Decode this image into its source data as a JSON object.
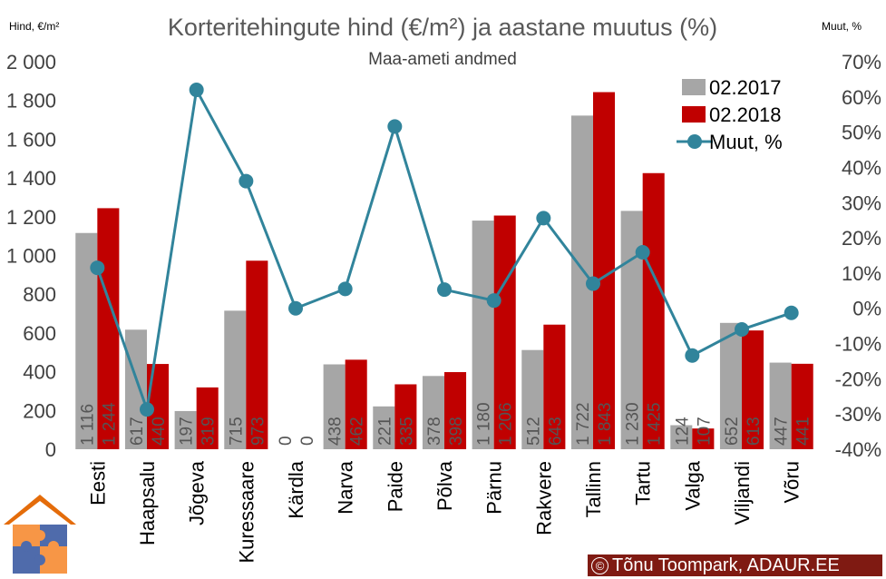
{
  "chart_data": {
    "type": "bar",
    "title": "Korteritehingute hind (€/m²) ja aastane muutus (%)",
    "subtitle": "Maa-ameti andmed",
    "ylabel": "Hind, €/m²",
    "y2label": "Muut, %",
    "ylim": [
      0,
      2000
    ],
    "y2lim": [
      -40,
      70
    ],
    "yticks": [
      "0",
      "200",
      "400",
      "600",
      "800",
      "1 000",
      "1 200",
      "1 400",
      "1 600",
      "1 800",
      "2 000"
    ],
    "y2ticks": [
      "-40%",
      "-30%",
      "-20%",
      "-10%",
      "0%",
      "10%",
      "20%",
      "30%",
      "40%",
      "50%",
      "60%",
      "70%"
    ],
    "categories": [
      "Eesti",
      "Haapsalu",
      "Jõgeva",
      "Kuressaare",
      "Kärdla",
      "Narva",
      "Paide",
      "Põlva",
      "Pärnu",
      "Rakvere",
      "Tallinn",
      "Tartu",
      "Valga",
      "Viljandi",
      "Võru"
    ],
    "series": [
      {
        "name": "02.2017",
        "color": "#a6a6a6",
        "values": [
          1116,
          617,
          197,
          715,
          0,
          438,
          221,
          378,
          1180,
          512,
          1722,
          1230,
          124,
          652,
          447
        ],
        "labels": [
          "1 116",
          "617",
          "197",
          "715",
          "0",
          "438",
          "221",
          "378",
          "1 180",
          "512",
          "1 722",
          "1 230",
          "124",
          "652",
          "447"
        ]
      },
      {
        "name": "02.2018",
        "color": "#c00000",
        "values": [
          1244,
          440,
          319,
          973,
          0,
          462,
          335,
          398,
          1206,
          643,
          1843,
          1425,
          107,
          613,
          441
        ],
        "labels": [
          "1 244",
          "440",
          "319",
          "973",
          "0",
          "462",
          "335",
          "398",
          "1 206",
          "643",
          "1 843",
          "1 425",
          "107",
          "613",
          "441"
        ]
      },
      {
        "name": "Muut, %",
        "color": "#31849b",
        "type": "line",
        "axis": "secondary",
        "values": [
          11.5,
          -28.7,
          62.0,
          36.1,
          0.0,
          5.5,
          51.6,
          5.3,
          2.2,
          25.6,
          7.0,
          15.9,
          -13.4,
          -6.0,
          -1.3
        ]
      }
    ],
    "legend_position": "top-right",
    "grid": false
  },
  "credit": "Tõnu Toompark, ADAUR.EE",
  "credit_symbol": "©",
  "logo": "puzzle-house-logo"
}
